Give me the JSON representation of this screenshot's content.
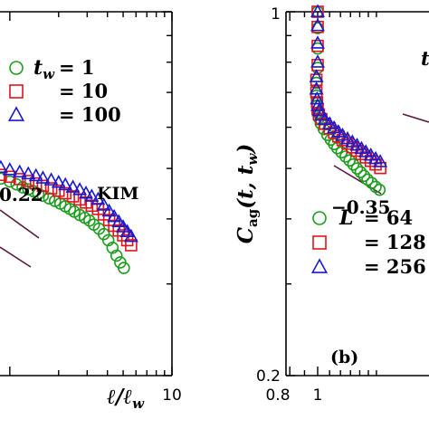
{
  "chart_data": [
    {
      "type": "scatter",
      "panel": "left",
      "xlabel": "ℓ/ℓ_w",
      "xscale": "log",
      "xlim": [
        0.87,
        10
      ],
      "yscale": "log",
      "ylim": [
        0.2,
        1
      ],
      "x_ticks": [
        10
      ],
      "annotation_model": "KIM",
      "annotation_slope": "0.22",
      "legend": [
        {
          "name_prefix": "t_w",
          "eq": "= 1",
          "marker": "circle",
          "color": "#1f9d1f"
        },
        {
          "name_prefix": "",
          "eq": "= 10",
          "marker": "square",
          "color": "#e0141e"
        },
        {
          "name_prefix": "",
          "eq": "= 100",
          "marker": "triangle",
          "color": "#1a1acc"
        }
      ],
      "series": [
        {
          "name": "t_w = 1",
          "marker": "circle",
          "color": "#1f9d1f",
          "x": [
            0.88,
            1.0,
            1.1,
            1.2,
            1.3,
            1.4,
            1.5,
            1.6,
            1.75,
            1.9,
            2.05,
            2.2,
            2.35,
            2.5,
            2.7,
            2.9,
            3.1,
            3.3,
            3.55,
            3.8,
            4.05,
            4.3,
            4.55,
            4.8,
            5.05
          ],
          "y": [
            0.478,
            0.472,
            0.466,
            0.46,
            0.456,
            0.452,
            0.447,
            0.443,
            0.438,
            0.433,
            0.428,
            0.423,
            0.418,
            0.413,
            0.407,
            0.402,
            0.397,
            0.39,
            0.383,
            0.374,
            0.364,
            0.352,
            0.34,
            0.33,
            0.322
          ]
        },
        {
          "name": "t_w = 10",
          "marker": "square",
          "color": "#e0141e",
          "x": [
            0.88,
            1.0,
            1.15,
            1.3,
            1.45,
            1.6,
            1.8,
            2.0,
            2.2,
            2.45,
            2.7,
            2.95,
            3.2,
            3.5,
            3.8,
            4.1,
            4.4,
            4.7,
            5.0,
            5.3,
            5.6
          ],
          "y": [
            0.486,
            0.482,
            0.477,
            0.473,
            0.468,
            0.463,
            0.458,
            0.453,
            0.448,
            0.442,
            0.436,
            0.43,
            0.424,
            0.418,
            0.408,
            0.398,
            0.388,
            0.38,
            0.372,
            0.364,
            0.356
          ]
        },
        {
          "name": "t_w = 100",
          "marker": "triangle",
          "color": "#1a1acc",
          "x": [
            0.88,
            1.0,
            1.15,
            1.3,
            1.45,
            1.6,
            1.8,
            2.0,
            2.2,
            2.45,
            2.7,
            2.95,
            3.2,
            3.5,
            3.8,
            4.1,
            4.4,
            4.7,
            5.0,
            5.3,
            5.6
          ],
          "y": [
            0.502,
            0.497,
            0.492,
            0.488,
            0.484,
            0.479,
            0.475,
            0.47,
            0.465,
            0.46,
            0.455,
            0.448,
            0.442,
            0.436,
            0.425,
            0.414,
            0.404,
            0.395,
            0.386,
            0.378,
            0.37
          ]
        }
      ]
    },
    {
      "type": "scatter",
      "panel": "right",
      "panel_label": "(b)",
      "ylabel": "C_ag(t,t_w)",
      "xscale": "log",
      "xlim": [
        0.8,
        1.65
      ],
      "yscale": "log",
      "ylim": [
        0.2,
        1
      ],
      "x_ticks": [
        0.8,
        1
      ],
      "x_tick_labels": [
        "0.8",
        "1"
      ],
      "y_ticks": [
        0.2,
        1
      ],
      "y_tick_labels": [
        "0.2",
        "1"
      ],
      "annotation_slope": "−0.35",
      "annotation_clipped": "t",
      "legend": [
        {
          "name_prefix": "L",
          "eq": "= 64",
          "marker": "circle",
          "color": "#1f9d1f"
        },
        {
          "name_prefix": "",
          "eq": "= 128",
          "marker": "square",
          "color": "#e0141e"
        },
        {
          "name_prefix": "",
          "eq": "= 256",
          "marker": "triangle",
          "color": "#1a1acc"
        }
      ],
      "series": [
        {
          "name": "L = 64",
          "marker": "circle",
          "color": "#1f9d1f",
          "x": [
            1.0,
            1.0,
            1.0,
            1.0,
            0.99,
            0.99,
            0.995,
            1.0,
            1.01,
            1.025,
            1.05,
            1.08,
            1.11,
            1.14,
            1.17,
            1.21,
            1.25,
            1.29,
            1.33,
            1.37,
            1.41,
            1.45,
            1.49,
            1.54,
            1.59,
            1.64
          ],
          "y": [
            1.0,
            0.93,
            0.85,
            0.78,
            0.73,
            0.69,
            0.66,
            0.64,
            0.625,
            0.61,
            0.595,
            0.58,
            0.568,
            0.557,
            0.547,
            0.537,
            0.527,
            0.518,
            0.509,
            0.5,
            0.492,
            0.484,
            0.476,
            0.469,
            0.461,
            0.455
          ]
        },
        {
          "name": "L = 128",
          "marker": "square",
          "color": "#e0141e",
          "x": [
            1.0,
            1.0,
            1.0,
            1.0,
            0.99,
            0.99,
            0.995,
            1.0,
            1.01,
            1.03,
            1.06,
            1.1,
            1.14,
            1.18,
            1.22,
            1.27,
            1.32,
            1.37,
            1.42,
            1.47,
            1.53,
            1.59,
            1.65
          ],
          "y": [
            1.0,
            0.935,
            0.86,
            0.79,
            0.74,
            0.7,
            0.67,
            0.65,
            0.635,
            0.622,
            0.609,
            0.597,
            0.586,
            0.576,
            0.567,
            0.558,
            0.549,
            0.541,
            0.533,
            0.525,
            0.517,
            0.509,
            0.501
          ]
        },
        {
          "name": "L = 256",
          "marker": "triangle",
          "color": "#1a1acc",
          "x": [
            1.0,
            1.0,
            1.0,
            1.0,
            0.99,
            0.99,
            0.995,
            1.0,
            1.01,
            1.03,
            1.06,
            1.1,
            1.14,
            1.18,
            1.22,
            1.27,
            1.32,
            1.37,
            1.42,
            1.47,
            1.53,
            1.59,
            1.65
          ],
          "y": [
            1.0,
            0.94,
            0.87,
            0.8,
            0.75,
            0.71,
            0.68,
            0.66,
            0.645,
            0.633,
            0.621,
            0.609,
            0.598,
            0.588,
            0.579,
            0.57,
            0.562,
            0.554,
            0.546,
            0.538,
            0.53,
            0.522,
            0.515
          ]
        }
      ]
    }
  ]
}
